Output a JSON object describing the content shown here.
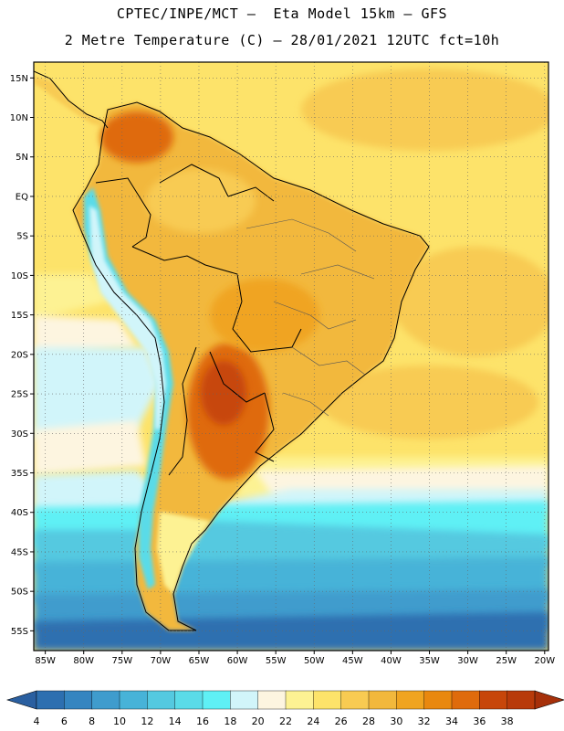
{
  "header": {
    "line1": "CPTEC/INPE/MCT –  Eta Model 15km – GFS",
    "line2": "2 Metre Temperature (C) – 28/01/2021 12UTC fct=10h"
  },
  "map": {
    "lon_range": [
      -85,
      -20
    ],
    "lat_range": [
      -58,
      17
    ],
    "lon_ticks": [
      "85W",
      "80W",
      "75W",
      "70W",
      "65W",
      "60W",
      "55W",
      "50W",
      "45W",
      "40W",
      "35W",
      "30W",
      "25W",
      "20W"
    ],
    "lat_ticks": [
      "15N",
      "10N",
      "5N",
      "EQ",
      "5S",
      "10S",
      "15S",
      "20S",
      "25S",
      "30S",
      "35S",
      "40S",
      "45S",
      "50S",
      "55S"
    ],
    "grid": "dotted"
  },
  "colorbar": {
    "labels": [
      "4",
      "6",
      "8",
      "10",
      "12",
      "14",
      "16",
      "18",
      "20",
      "22",
      "24",
      "26",
      "28",
      "30",
      "32",
      "34",
      "36",
      "38"
    ],
    "colors": [
      "#2d6fb0",
      "#3585c0",
      "#3f9ccd",
      "#47b3d8",
      "#54c9e0",
      "#5adbe8",
      "#5ff0f5",
      "#d1f5fa",
      "#fdf5e0",
      "#fdf293",
      "#fde36a",
      "#f8cb52",
      "#f2b83c",
      "#f0a420",
      "#e9880f",
      "#df6b0c",
      "#c7460a",
      "#b83a0a"
    ],
    "end_left_color": "#2a5fa0",
    "end_right_color": "#a6300a"
  }
}
